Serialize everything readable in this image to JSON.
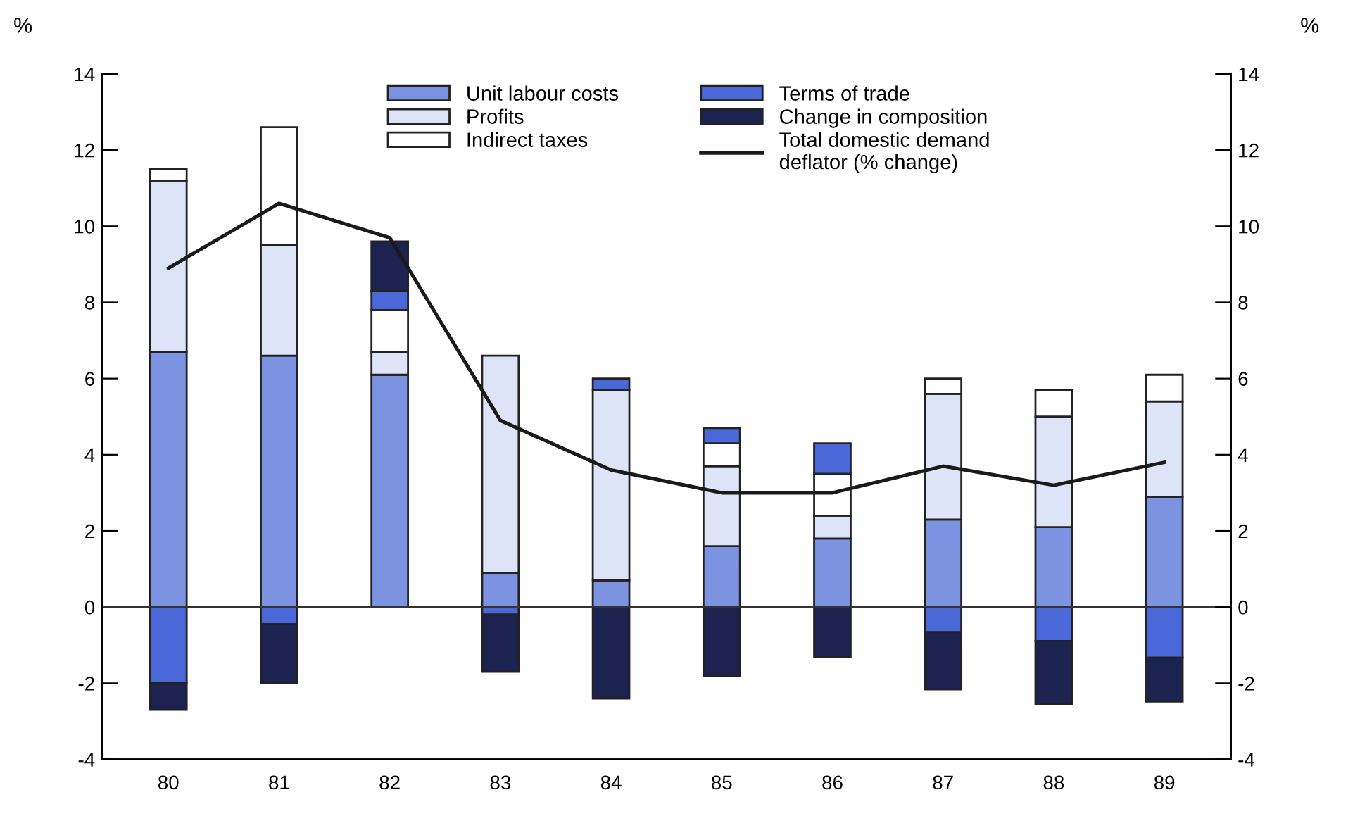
{
  "chart_data": {
    "type": "bar",
    "stacked": true,
    "categories": [
      "80",
      "81",
      "82",
      "83",
      "84",
      "85",
      "86",
      "87",
      "88",
      "89"
    ],
    "series": [
      {
        "name": "Unit labour costs",
        "color": "#7b93e0",
        "values": [
          6.7,
          6.6,
          6.1,
          0.9,
          0.7,
          1.6,
          1.8,
          2.3,
          2.1,
          2.9
        ]
      },
      {
        "name": "Profits",
        "color": "#dde4f7",
        "values": [
          4.5,
          2.9,
          0.6,
          5.7,
          5.0,
          2.1,
          0.6,
          3.3,
          2.9,
          2.5
        ]
      },
      {
        "name": "Indirect taxes",
        "color": "#ffffff",
        "values": [
          0.3,
          3.1,
          1.1,
          null,
          null,
          0.6,
          1.1,
          0.4,
          0.7,
          0.7
        ]
      },
      {
        "name": "Terms of trade",
        "color": "#4a68d8",
        "values": [
          -2.0,
          -0.45,
          0.5,
          -0.2,
          0.3,
          0.4,
          0.8,
          -0.66,
          -0.89,
          -1.33
        ]
      },
      {
        "name": "Change in composition",
        "color": "#1c2350",
        "values": [
          -0.7,
          -1.55,
          1.3,
          -1.5,
          -2.4,
          -1.8,
          -1.3,
          -1.5,
          -1.65,
          -1.15
        ]
      },
      {
        "name": "Total domestic demand\ndeflator (% change)",
        "type": "line",
        "color": "#1a1a1a",
        "values": [
          8.9,
          10.6,
          9.7,
          4.9,
          3.6,
          3.0,
          3.0,
          3.7,
          3.2,
          3.8
        ]
      }
    ],
    "ylabel": "%",
    "y2label": "%",
    "ylim": [
      -4,
      14
    ],
    "yticks": [
      -4,
      -2,
      0,
      2,
      4,
      6,
      8,
      10,
      12,
      14
    ],
    "y2lim": [
      -4,
      14
    ],
    "y2ticks": [
      -4,
      -2,
      0,
      2,
      4,
      6,
      8,
      10,
      12,
      14
    ],
    "ref_lines": [
      {
        "axis": "y",
        "value": 0,
        "color": "#333333"
      }
    ],
    "legend": "top",
    "grid": false
  }
}
